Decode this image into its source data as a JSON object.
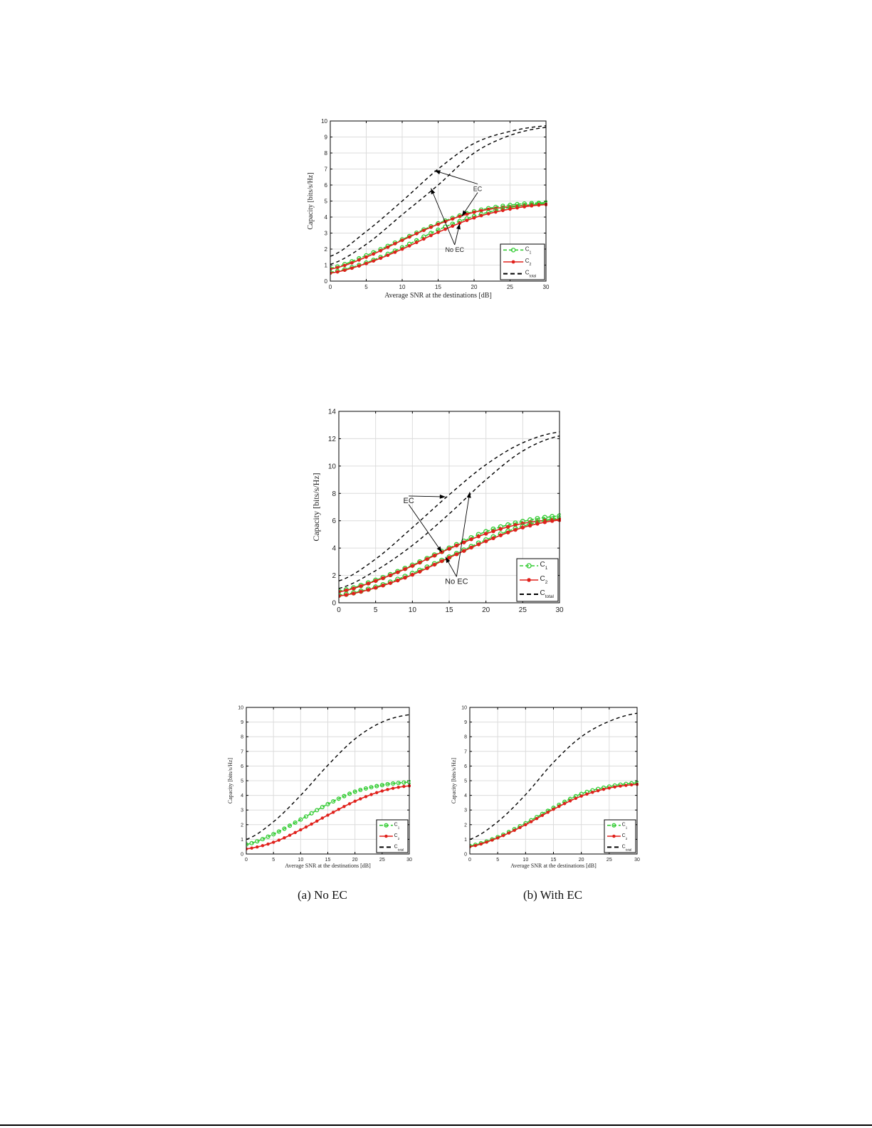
{
  "chart_data": [
    {
      "id": "fig1",
      "type": "line",
      "title": "",
      "xlabel": "Average SNR at the destinations [dB]",
      "ylabel": "Capacity [bits/s/Hz]",
      "xlim": [
        0,
        30
      ],
      "ylim": [
        0,
        10
      ],
      "xticks": [
        0,
        5,
        10,
        15,
        20,
        25,
        30
      ],
      "yticks": [
        0,
        1,
        2,
        3,
        4,
        5,
        6,
        7,
        8,
        9,
        10
      ],
      "grid": true,
      "legend_position": "lower right",
      "legend": [
        "C_1",
        "C_2",
        "C_total"
      ],
      "x": [
        0,
        5,
        10,
        15,
        20,
        25,
        30
      ],
      "series": [
        {
          "name": "C_1 (EC)",
          "style": "green dashed circles",
          "values": [
            0.8,
            1.6,
            2.6,
            3.6,
            4.35,
            4.75,
            4.9
          ]
        },
        {
          "name": "C_2 (EC)",
          "style": "red solid stars",
          "values": [
            0.75,
            1.5,
            2.55,
            3.55,
            4.3,
            4.65,
            4.8
          ]
        },
        {
          "name": "C_1 (No EC)",
          "style": "green dashed circles",
          "values": [
            0.55,
            1.15,
            2.1,
            3.2,
            4.05,
            4.6,
            4.85
          ]
        },
        {
          "name": "C_2 (No EC)",
          "style": "red solid stars",
          "values": [
            0.5,
            1.1,
            2.0,
            3.05,
            3.95,
            4.5,
            4.78
          ]
        },
        {
          "name": "C_total (EC)",
          "style": "black dashed",
          "values": [
            1.55,
            3.1,
            5.0,
            7.0,
            8.6,
            9.35,
            9.7
          ]
        },
        {
          "name": "C_total (No EC)",
          "style": "black dashed",
          "values": [
            1.05,
            2.3,
            4.15,
            6.0,
            8.0,
            9.1,
            9.6
          ]
        }
      ],
      "annotations": [
        {
          "text": "EC",
          "x": 20.5,
          "y": 5.8,
          "arrows_to": [
            [
              14.5,
              6.9
            ],
            [
              18.3,
              4.05
            ]
          ]
        },
        {
          "text": "No EC",
          "x": 17.3,
          "y": 2.0,
          "arrows_to": [
            [
              14.0,
              5.8
            ],
            [
              18.0,
              3.6
            ]
          ]
        }
      ]
    },
    {
      "id": "fig2",
      "type": "line",
      "title": "",
      "xlabel": "Average SNR at the destinations [dB]",
      "ylabel": "Capacity [bits/s/Hz]",
      "xlim": [
        0,
        30
      ],
      "ylim": [
        0,
        14
      ],
      "xticks": [
        0,
        5,
        10,
        15,
        20,
        25,
        30
      ],
      "yticks": [
        0,
        2,
        4,
        6,
        8,
        10,
        12,
        14
      ],
      "grid": true,
      "legend_position": "lower right",
      "legend": [
        "C_1",
        "C_2",
        "C_total"
      ],
      "x": [
        0,
        5,
        10,
        15,
        20,
        25,
        30
      ],
      "series": [
        {
          "name": "C_1 (EC)",
          "style": "green dashed circles",
          "values": [
            0.85,
            1.65,
            2.75,
            4.0,
            5.2,
            5.95,
            6.35
          ]
        },
        {
          "name": "C_2 (EC)",
          "style": "red solid stars",
          "values": [
            0.8,
            1.6,
            2.7,
            3.95,
            5.05,
            5.8,
            6.1
          ]
        },
        {
          "name": "C_1 (No EC)",
          "style": "green dashed circles",
          "values": [
            0.55,
            1.15,
            2.15,
            3.35,
            4.6,
            5.6,
            6.2
          ]
        },
        {
          "name": "C_2 (No EC)",
          "style": "red solid stars",
          "values": [
            0.5,
            1.1,
            2.05,
            3.3,
            4.5,
            5.5,
            6.05
          ]
        },
        {
          "name": "C_total (EC)",
          "style": "black dashed",
          "values": [
            1.6,
            3.2,
            5.5,
            7.9,
            10.1,
            11.7,
            12.5
          ]
        },
        {
          "name": "C_total (No EC)",
          "style": "black dashed",
          "values": [
            1.05,
            2.35,
            4.2,
            6.5,
            9.0,
            11.1,
            12.2
          ]
        }
      ],
      "annotations": [
        {
          "text": "EC",
          "x": 9.5,
          "y": 7.5,
          "arrows_to": [
            [
              14.5,
              7.75
            ],
            [
              14.0,
              3.7
            ]
          ]
        },
        {
          "text": "No EC",
          "x": 16.0,
          "y": 1.6,
          "arrows_to": [
            [
              14.5,
              3.35
            ],
            [
              17.8,
              8.1
            ]
          ]
        }
      ]
    },
    {
      "id": "fig3a",
      "type": "line",
      "title": "",
      "caption": "(a) No EC",
      "xlabel": "Average SNR at the destinations [dB]",
      "ylabel": "Capacity [bits/s/Hz]",
      "xlim": [
        0,
        30
      ],
      "ylim": [
        0,
        10
      ],
      "xticks": [
        0,
        5,
        10,
        15,
        20,
        25,
        30
      ],
      "yticks": [
        0,
        1,
        2,
        3,
        4,
        5,
        6,
        7,
        8,
        9,
        10
      ],
      "grid": true,
      "legend_position": "lower right",
      "legend": [
        "C_1",
        "C_2",
        "C_total"
      ],
      "x": [
        0,
        5,
        10,
        15,
        20,
        25,
        30
      ],
      "series": [
        {
          "name": "C_1",
          "style": "green dashed circles",
          "values": [
            0.65,
            1.35,
            2.35,
            3.4,
            4.25,
            4.7,
            4.9
          ]
        },
        {
          "name": "C_2",
          "style": "red solid stars",
          "values": [
            0.35,
            0.8,
            1.65,
            2.65,
            3.6,
            4.3,
            4.65
          ]
        },
        {
          "name": "C_total",
          "style": "black dashed",
          "values": [
            1.0,
            2.2,
            4.0,
            6.05,
            7.85,
            9.0,
            9.5
          ]
        }
      ]
    },
    {
      "id": "fig3b",
      "type": "line",
      "title": "",
      "caption": "(b) With EC",
      "xlabel": "Average SNR at the destinations [dB]",
      "ylabel": "Capacity [bits/s/Hz]",
      "xlim": [
        0,
        30
      ],
      "ylim": [
        0,
        10
      ],
      "xticks": [
        0,
        5,
        10,
        15,
        20,
        25,
        30
      ],
      "yticks": [
        0,
        1,
        2,
        3,
        4,
        5,
        6,
        7,
        8,
        9,
        10
      ],
      "grid": true,
      "legend_position": "lower right",
      "legend": [
        "C_1",
        "C_2",
        "C_total"
      ],
      "x": [
        0,
        5,
        10,
        15,
        20,
        25,
        30
      ],
      "series": [
        {
          "name": "C_1",
          "style": "green dashed circles",
          "values": [
            0.55,
            1.15,
            2.1,
            3.15,
            4.1,
            4.6,
            4.85
          ]
        },
        {
          "name": "C_2",
          "style": "red solid stars",
          "values": [
            0.5,
            1.1,
            2.0,
            3.05,
            3.95,
            4.5,
            4.75
          ]
        },
        {
          "name": "C_total",
          "style": "black dashed",
          "values": [
            1.0,
            2.2,
            4.05,
            6.25,
            8.0,
            9.05,
            9.6
          ]
        }
      ]
    }
  ],
  "captions": {
    "a": "(a) No EC",
    "b": "(b) With EC"
  },
  "labels": {
    "ec": "EC",
    "no_ec": "No EC",
    "legend_c": "C",
    "legend_sub1": "1",
    "legend_sub2": "2",
    "legend_subtotal": "total"
  },
  "colors": {
    "c1": "#33cc33",
    "c2": "#e0201b",
    "ctotal": "#000000",
    "grid": "#dcdcdc",
    "axis": "#222222"
  }
}
